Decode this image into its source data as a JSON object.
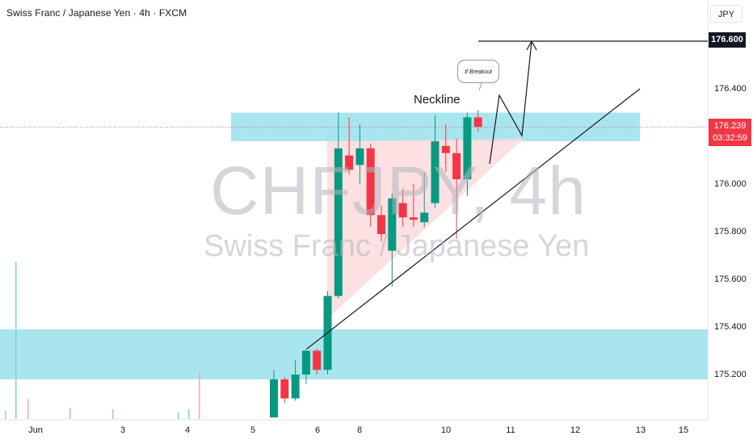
{
  "header": {
    "title": "Swiss Franc / Japanese Yen · 4h · FXCM"
  },
  "currency_button": {
    "label": "JPY"
  },
  "watermark": {
    "symbol": "CHFJPY, 4h",
    "name": "Swiss Franc / Japanese Yen"
  },
  "annotations": {
    "neckline": "Neckline",
    "bubble": "If Breakout"
  },
  "price_labels": {
    "target": "176.600",
    "current_price": "176.239",
    "countdown": "03:32:59"
  },
  "colors": {
    "up": "#089981",
    "down": "#f23645",
    "zone": "#a9e5ef",
    "triangle": "#fbdadd",
    "line": "#131722"
  },
  "chart_data": {
    "type": "candlestick",
    "y_ticks": [
      "176.400",
      "176.000",
      "175.800",
      "175.600",
      "175.400",
      "175.200"
    ],
    "y_range": [
      175.05,
      176.74
    ],
    "x_ticks": [
      "Jun",
      "3",
      "4",
      "5",
      "6",
      "8",
      "10",
      "11",
      "12",
      "13",
      "15"
    ],
    "zones": [
      {
        "from": 176.3,
        "to": 176.18
      },
      {
        "from": 175.39,
        "to": 175.18
      }
    ],
    "target_level": 176.6,
    "current_price": 176.239,
    "candles": [
      {
        "o": 175.02,
        "h": 175.22,
        "l": 175.02,
        "c": 175.18
      },
      {
        "o": 175.18,
        "h": 175.19,
        "l": 175.08,
        "c": 175.1
      },
      {
        "o": 175.1,
        "h": 175.26,
        "l": 175.09,
        "c": 175.2
      },
      {
        "o": 175.2,
        "h": 175.31,
        "l": 175.16,
        "c": 175.3
      },
      {
        "o": 175.3,
        "h": 175.31,
        "l": 175.2,
        "c": 175.22
      },
      {
        "o": 175.22,
        "h": 175.55,
        "l": 175.2,
        "c": 175.53
      },
      {
        "o": 175.53,
        "h": 176.3,
        "l": 175.52,
        "c": 176.15
      },
      {
        "o": 176.12,
        "h": 176.28,
        "l": 176.04,
        "c": 176.06
      },
      {
        "o": 176.08,
        "h": 176.25,
        "l": 176.0,
        "c": 176.15
      },
      {
        "o": 176.15,
        "h": 176.17,
        "l": 175.82,
        "c": 175.87
      },
      {
        "o": 175.87,
        "h": 175.91,
        "l": 175.76,
        "c": 175.79
      },
      {
        "o": 175.72,
        "h": 175.96,
        "l": 175.57,
        "c": 175.94
      },
      {
        "o": 175.92,
        "h": 175.98,
        "l": 175.82,
        "c": 175.86
      },
      {
        "o": 175.86,
        "h": 176.0,
        "l": 175.82,
        "c": 175.85
      },
      {
        "o": 175.84,
        "h": 176.05,
        "l": 175.82,
        "c": 175.88
      },
      {
        "o": 175.92,
        "h": 176.29,
        "l": 175.9,
        "c": 176.18
      },
      {
        "o": 176.16,
        "h": 176.25,
        "l": 176.05,
        "c": 176.13
      },
      {
        "o": 176.13,
        "h": 176.19,
        "l": 175.77,
        "c": 176.02
      },
      {
        "o": 176.02,
        "h": 176.3,
        "l": 175.95,
        "c": 176.28
      },
      {
        "o": 176.28,
        "h": 176.31,
        "l": 176.22,
        "c": 176.24
      }
    ],
    "volume": [
      {
        "h": 0.05,
        "up": true
      },
      {
        "h": 0.95,
        "up": true
      },
      {
        "h": 0.12,
        "up": false
      },
      {
        "h": 0.07,
        "up": false
      },
      {
        "h": 0.06,
        "up": false
      },
      {
        "h": 0.04,
        "up": true
      },
      {
        "h": 0.06,
        "up": true
      },
      {
        "h": 0.15,
        "up": true
      },
      {
        "h": 0.28,
        "up": false
      }
    ]
  }
}
